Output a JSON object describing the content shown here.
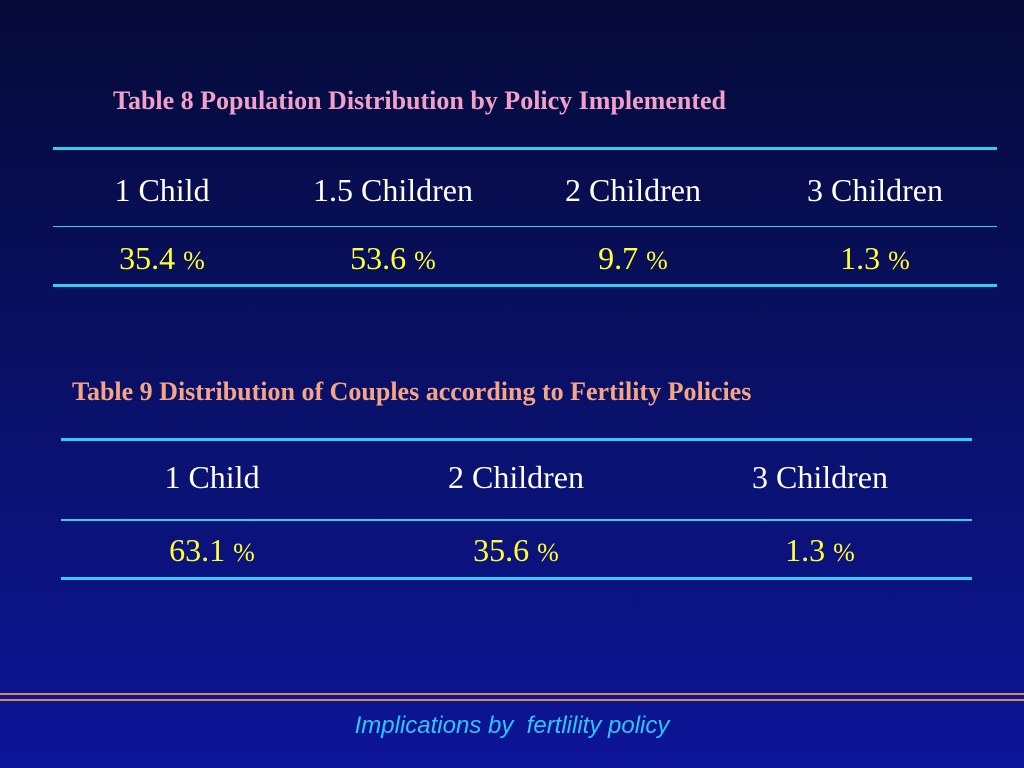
{
  "table8": {
    "title": "Table 8  Population Distribution by Policy Implemented",
    "headers": [
      "1 Child",
      "1.5 Children",
      "2 Children",
      "3 Children"
    ],
    "values": [
      "35.4",
      "53.6",
      "9.7",
      "1.3"
    ],
    "unit": "%"
  },
  "table9": {
    "title": "Table 9  Distribution of Couples according to Fertility Policies",
    "headers": [
      "1 Child",
      "2 Children",
      "3 Children"
    ],
    "values": [
      "63.1",
      "35.6",
      "1.3"
    ],
    "unit": "%"
  },
  "footer": {
    "text": "Implications by  fertlility policy"
  },
  "colors": {
    "background": "#091062",
    "table8_title": "#f2a0c8",
    "table9_title": "#f5a583",
    "rule": "#33ccf2",
    "header_text": "#ffffff",
    "value_text": "#ffff33",
    "footer_text": "#2ec6f3",
    "footer_line": "#d68a4f"
  }
}
